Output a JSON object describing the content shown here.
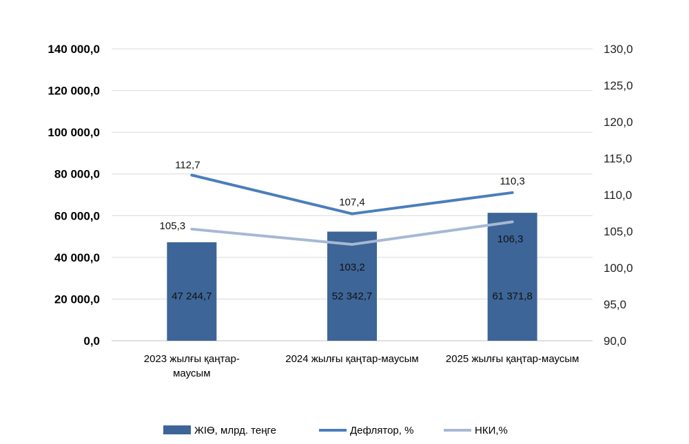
{
  "chart_data": {
    "type": "bar+line",
    "categories": [
      [
        "2023 жылғы қаңтар-",
        "маусым"
      ],
      [
        "2024 жылғы қаңтар-маусым"
      ],
      [
        "2025 жылғы қаңтар-маусым"
      ]
    ],
    "bars": {
      "name": "ЖІӨ, млрд. теңге",
      "values": [
        47244.7,
        52342.7,
        61371.8
      ],
      "labels": [
        "47 244,7",
        "52 342,7",
        "61 371,8"
      ],
      "color": "#3d6597"
    },
    "lines": [
      {
        "name": "Дефлятор, %",
        "values": [
          112.7,
          107.4,
          110.3
        ],
        "labels": [
          "112,7",
          "107,4",
          "110,3"
        ],
        "color": "#4a7ebb"
      },
      {
        "name": "НКИ,%",
        "values": [
          105.3,
          103.2,
          106.3
        ],
        "labels": [
          "105,3",
          "103,2",
          "106,3"
        ],
        "color": "#a6b8d4"
      }
    ],
    "y_left": {
      "min": 0,
      "max": 140000,
      "step": 20000,
      "ticks": [
        "0,0",
        "20 000,0",
        "40 000,0",
        "60 000,0",
        "80 000,0",
        "100 000,0",
        "120 000,0",
        "140 000,0"
      ]
    },
    "y_right": {
      "min": 90,
      "max": 130,
      "step": 5,
      "ticks": [
        "90,0",
        "95,0",
        "100,0",
        "105,0",
        "110,0",
        "115,0",
        "120,0",
        "125,0",
        "130,0"
      ]
    },
    "legend_position": "bottom",
    "grid": true
  }
}
